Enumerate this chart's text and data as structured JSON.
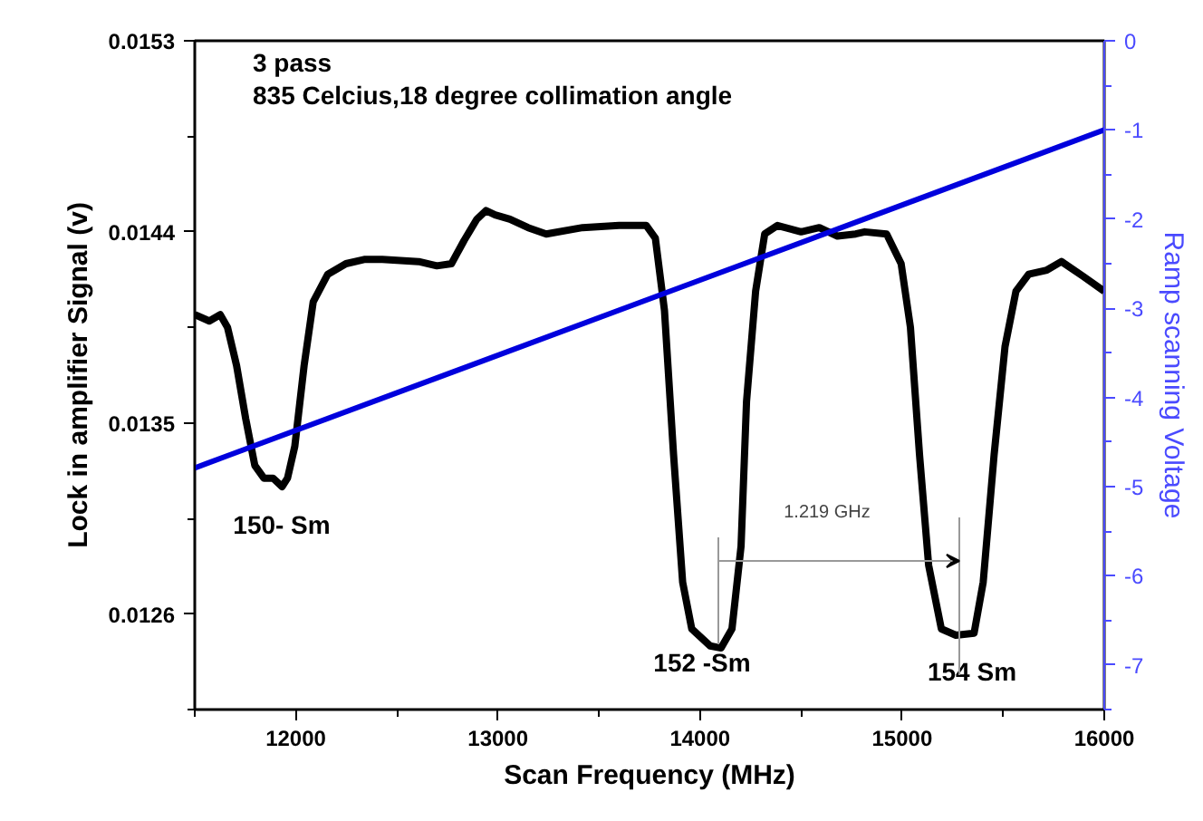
{
  "chart_data": {
    "type": "line",
    "xlabel": "Scan Frequency (MHz)",
    "ylabel": "Lock in amplifier Signal (v)",
    "y2label": "Ramp scanning Voltage",
    "xlim": [
      11500,
      16000
    ],
    "xticks": [
      12000,
      13000,
      14000,
      15000,
      16000
    ],
    "ylim": [
      0.01215,
      0.0153
    ],
    "yticks": [
      0.0126,
      0.0135,
      0.0144,
      0.0153
    ],
    "y2lim": [
      -7.5,
      0
    ],
    "y2ticks": [
      -7,
      -6,
      -5,
      -4,
      -3,
      -2,
      -1,
      0
    ],
    "grid": false,
    "marker": "none",
    "line_style": "solid",
    "series": [
      {
        "color": "#000000",
        "x": [
          11500,
          11572,
          11626,
          11662,
          11707,
          11752,
          11797,
          11842,
          11887,
          11932,
          11959,
          11995,
          12041,
          12086,
          12158,
          12248,
          12338,
          12428,
          12608,
          12698,
          12770,
          12833,
          12896,
          12941,
          12986,
          13059,
          13149,
          13239,
          13419,
          13599,
          13734,
          13779,
          13824,
          13869,
          13914,
          13959,
          14050,
          14104,
          14158,
          14203,
          14230,
          14275,
          14320,
          14383,
          14500,
          14590,
          14680,
          14770,
          14815,
          14923,
          14995,
          15041,
          15086,
          15131,
          15194,
          15266,
          15356,
          15401,
          15455,
          15509,
          15563,
          15626,
          15716,
          15788,
          15896,
          16000
        ],
        "values": [
          0.01401,
          0.01398,
          0.01401,
          0.01395,
          0.01377,
          0.01352,
          0.0133,
          0.01324,
          0.01324,
          0.0132,
          0.01324,
          0.01339,
          0.01377,
          0.01407,
          0.0142,
          0.01425,
          0.01427,
          0.01427,
          0.01426,
          0.01424,
          0.01425,
          0.01436,
          0.01446,
          0.0145,
          0.01448,
          0.01446,
          0.01442,
          0.01439,
          0.01442,
          0.01443,
          0.01443,
          0.01437,
          0.01403,
          0.01335,
          0.01275,
          0.01253,
          0.01245,
          0.01244,
          0.01253,
          0.01292,
          0.0136,
          0.01412,
          0.01439,
          0.01443,
          0.0144,
          0.01442,
          0.01438,
          0.01439,
          0.0144,
          0.01439,
          0.01425,
          0.01395,
          0.01335,
          0.01283,
          0.01253,
          0.0125,
          0.01251,
          0.01275,
          0.01335,
          0.01386,
          0.01412,
          0.0142,
          0.01422,
          0.01426,
          0.01419,
          0.01412
        ]
      },
      {
        "color": "#0000dd",
        "axis": "y2",
        "x": [
          11500,
          16000
        ],
        "values": [
          -4.79,
          -1.0
        ]
      }
    ],
    "annotations": [
      "3 pass",
      "835 Celcius,18 degree collimation angle",
      "150- Sm",
      "152 -Sm",
      "154 Sm",
      "1.219 GHz"
    ]
  }
}
